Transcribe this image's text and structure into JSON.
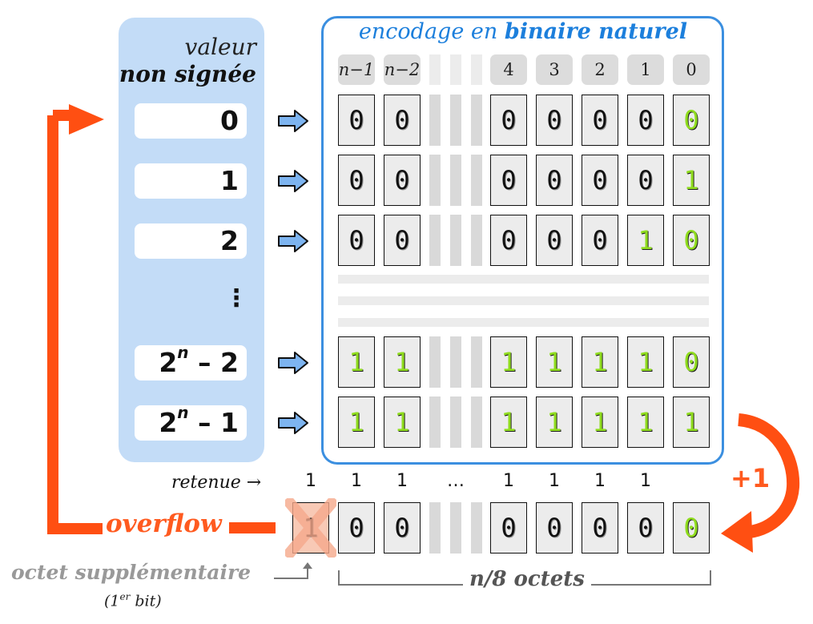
{
  "left": {
    "title_line1": "valeur",
    "title_line2": "non signée",
    "values": [
      "0",
      "1",
      "2",
      "⋮",
      "2",
      "2"
    ],
    "values_suffix": [
      "",
      "",
      "",
      "",
      " – 2",
      " – 1"
    ],
    "superscript": "n"
  },
  "encoding": {
    "title_plain": "encodage en ",
    "title_bold": "binaire naturel",
    "headers": [
      "n−1",
      "n−2",
      "4",
      "3",
      "2",
      "1",
      "0"
    ],
    "rows": [
      [
        "0",
        "0",
        "0",
        "0",
        "0",
        "0",
        "0"
      ],
      [
        "0",
        "0",
        "0",
        "0",
        "0",
        "0",
        "1"
      ],
      [
        "0",
        "0",
        "0",
        "0",
        "0",
        "1",
        "0"
      ],
      [
        "1",
        "1",
        "1",
        "1",
        "1",
        "1",
        "0"
      ],
      [
        "1",
        "1",
        "1",
        "1",
        "1",
        "1",
        "1"
      ]
    ]
  },
  "carry": {
    "label": "retenue",
    "arrow": "→",
    "values": [
      "1",
      "1",
      "1",
      "…",
      "1",
      "1",
      "1",
      "1"
    ]
  },
  "result": {
    "extra_bit": "1",
    "bits": [
      "0",
      "0",
      "0",
      "0",
      "0",
      "0",
      "0"
    ]
  },
  "labels": {
    "overflow": "overflow",
    "plus_one": "+1",
    "extra_byte": "octet supplémentaire",
    "extra_sub_pre": "(1",
    "extra_sub_sup": "er",
    "extra_sub_post": " bit)",
    "octets": "n/8 octets"
  },
  "colors": {
    "panel_blue": "#c3dcf7",
    "border_blue": "#3b8fe0",
    "title_blue": "#1c7fdc",
    "bit_green": "#8fdc1e",
    "overflow_orange": "#ff5a1f",
    "cross": "#f6a98c"
  }
}
